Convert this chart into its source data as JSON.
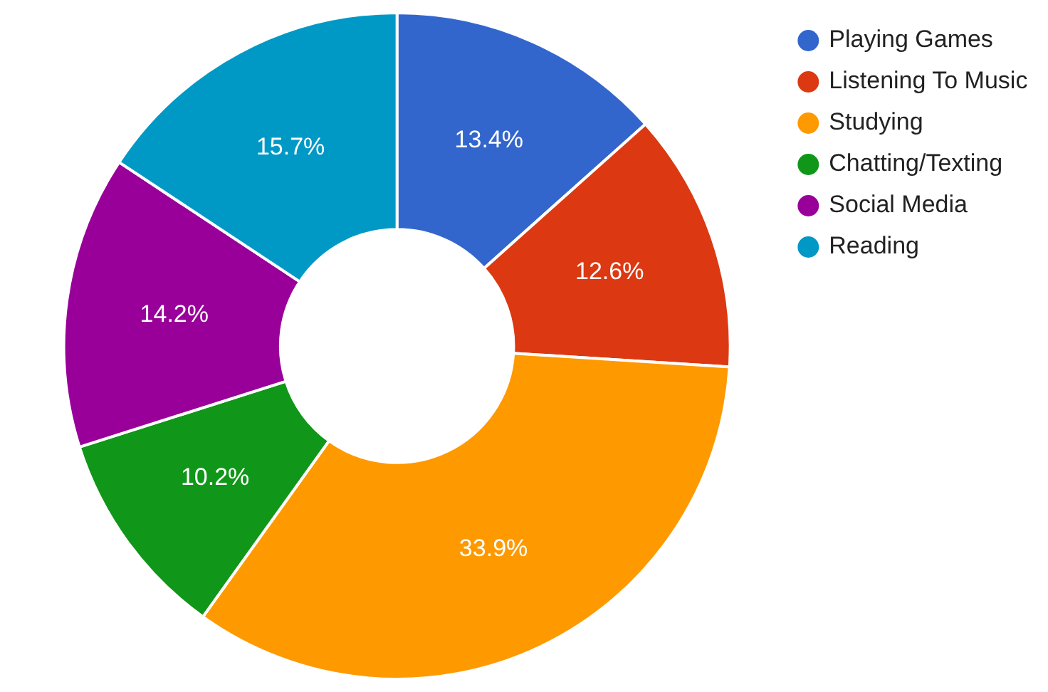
{
  "chart_data": {
    "type": "donut",
    "categories": [
      "Playing Games",
      "Listening To Music",
      "Studying",
      "Chatting/Texting",
      "Social Media",
      "Reading"
    ],
    "values": [
      13.4,
      12.6,
      33.9,
      10.2,
      14.2,
      15.7
    ],
    "colors": [
      "#3366cc",
      "#dc3912",
      "#ff9900",
      "#109618",
      "#990099",
      "#0099c6"
    ],
    "value_labels": [
      "13.4%",
      "12.6%",
      "33.9%",
      "10.2%",
      "14.2%",
      "15.7%"
    ],
    "legend": "top right"
  }
}
